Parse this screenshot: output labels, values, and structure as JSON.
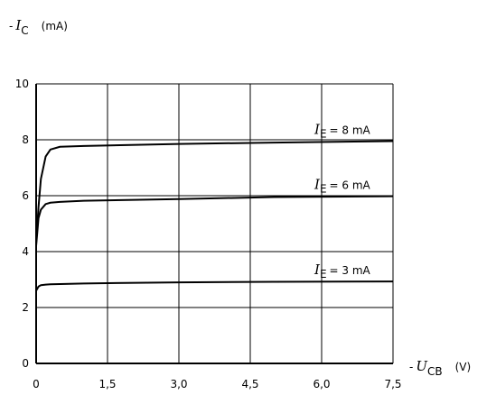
{
  "chart_data": {
    "type": "line",
    "y_label": {
      "prefix": "-",
      "symbol": "I",
      "subscript": "C",
      "unit": "(mA)"
    },
    "x_label": {
      "prefix": "-",
      "symbol": "U",
      "subscript": "CB",
      "unit": "(V)"
    },
    "xlim": [
      0,
      7.5
    ],
    "ylim": [
      0,
      10
    ],
    "xticks": [
      0,
      {
        "value": 1.5,
        "label": "1,5"
      },
      {
        "value": 3.0,
        "label": "3,0"
      },
      {
        "value": 4.5,
        "label": "4,5"
      },
      {
        "value": 6.0,
        "label": "6,0"
      },
      {
        "value": 7.5,
        "label": "7,5"
      }
    ],
    "yticks": [
      0,
      2,
      4,
      6,
      8,
      10
    ],
    "grid": true,
    "x": [
      0,
      0,
      0.05,
      0.1,
      0.2,
      0.3,
      0.5,
      1,
      3,
      5,
      7.5
    ],
    "series": [
      {
        "label": {
          "symbol": "I",
          "subscript": "E",
          "text": "= 8 mA"
        },
        "color": "#000000",
        "values": [
          0,
          4.3,
          5.6,
          6.6,
          7.4,
          7.65,
          7.75,
          7.78,
          7.85,
          7.9,
          7.95
        ]
      },
      {
        "label": {
          "symbol": "I",
          "subscript": "E",
          "text": "= 6 mA"
        },
        "color": "#000000",
        "values": [
          0,
          4.2,
          5.2,
          5.5,
          5.7,
          5.75,
          5.78,
          5.82,
          5.88,
          5.95,
          5.98
        ]
      },
      {
        "label": {
          "symbol": "I",
          "subscript": "E",
          "text": "= 3 mA"
        },
        "color": "#000000",
        "values": [
          0,
          2.6,
          2.75,
          2.8,
          2.82,
          2.83,
          2.84,
          2.86,
          2.9,
          2.92,
          2.93
        ]
      }
    ]
  }
}
